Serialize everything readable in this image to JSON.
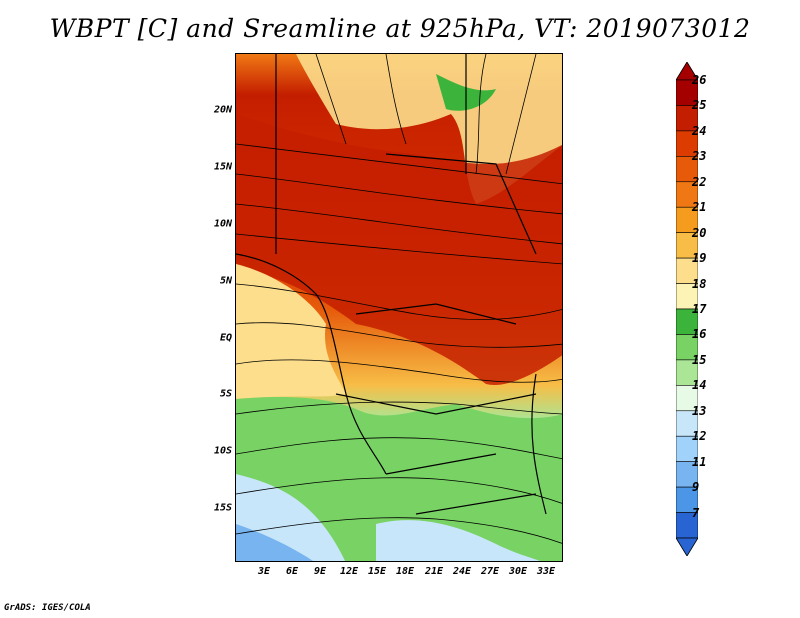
{
  "title": "WBPT [C] and Sreamline at 925hPa, VT: 2019073012",
  "credit": "GrADS: IGES/COLA",
  "map": {
    "lat_labels": [
      "20N",
      "15N",
      "10N",
      "5N",
      "EQ",
      "5S",
      "10S",
      "15S"
    ],
    "lon_labels": [
      "3E",
      "6E",
      "9E",
      "12E",
      "15E",
      "18E",
      "21E",
      "24E",
      "27E",
      "30E",
      "33E"
    ]
  },
  "colorbar": {
    "labels": [
      "26",
      "25",
      "24",
      "23",
      "22",
      "21",
      "20",
      "19",
      "18",
      "17",
      "16",
      "15",
      "14",
      "13",
      "12",
      "11",
      "9",
      "7"
    ],
    "colors": [
      "#a50000",
      "#c41e00",
      "#dc3c00",
      "#e65a0a",
      "#f07814",
      "#f59b1e",
      "#f7bd46",
      "#fcde8c",
      "#fdf3b4",
      "#3cb43c",
      "#78d264",
      "#aae696",
      "#e6fae6",
      "#c8e6fa",
      "#a0d2fa",
      "#78b4f0",
      "#4b96e6",
      "#2864d2"
    ]
  }
}
